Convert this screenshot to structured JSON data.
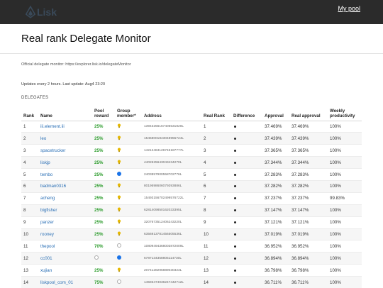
{
  "header": {
    "logo_text": "Lisk",
    "my_pool_label": "My pool"
  },
  "page": {
    "title": "Real rank Delegate Monitor",
    "official_text": "Official delegate monitor: https://explorer.lisk.io/delegateMonitor",
    "updates_text": "Updates every 2 hours. Last update: Aug4 23:20",
    "section_label": "DELEGATES"
  },
  "table": {
    "headers": {
      "rank": "Rank",
      "name": "Name",
      "reward": "Pool reward",
      "member": "Group member*",
      "address": "Address",
      "real_rank": "Real Rank",
      "difference": "Difference",
      "approval": "Approval",
      "real_approval": "Real approval",
      "productivity": "Weekly productivity"
    },
    "rows": [
      {
        "rank": "1",
        "name": "iii.element.iii",
        "reward": "25%",
        "member": "bulb",
        "address": "13943256167405531820L",
        "real_rank": "1",
        "approval": "37.469%",
        "real_approval": "37.469%",
        "productivity": "100%"
      },
      {
        "rank": "2",
        "name": "leo",
        "reward": "25%",
        "member": "bulb",
        "address": "15458001843048955724L",
        "real_rank": "2",
        "approval": "37.439%",
        "real_approval": "37.439%",
        "productivity": "100%"
      },
      {
        "rank": "3",
        "name": "spacetrucker",
        "reward": "25%",
        "member": "bulb",
        "address": "14212484126746187777L",
        "real_rank": "3",
        "approval": "37.365%",
        "real_approval": "37.365%",
        "productivity": "100%"
      },
      {
        "rank": "4",
        "name": "liskjp",
        "reward": "25%",
        "member": "bulb",
        "address": "4402625643043434270L",
        "real_rank": "4",
        "approval": "37.344%",
        "real_approval": "37.344%",
        "productivity": "100%"
      },
      {
        "rank": "5",
        "name": "tembo",
        "reward": "25%",
        "member": "blue",
        "address": "2403857900558702776L",
        "real_rank": "5",
        "approval": "37.283%",
        "real_approval": "37.283%",
        "productivity": "100%"
      },
      {
        "rank": "6",
        "name": "badman0316",
        "reward": "25%",
        "member": "bulb",
        "address": "8019598606079393886L",
        "real_rank": "6",
        "approval": "37.282%",
        "real_approval": "37.282%",
        "productivity": "100%"
      },
      {
        "rank": "7",
        "name": "acheng",
        "reward": "25%",
        "member": "bulb",
        "address": "15493156702499576722L",
        "real_rank": "7",
        "approval": "37.237%",
        "real_approval": "37.237%",
        "productivity": "99.83%"
      },
      {
        "rank": "8",
        "name": "bigfisher",
        "reward": "25%",
        "member": "bulb",
        "address": "6281409850162033395L",
        "real_rank": "8",
        "approval": "37.147%",
        "real_approval": "37.147%",
        "productivity": "100%"
      },
      {
        "rank": "9",
        "name": "panzer",
        "reward": "25%",
        "member": "bulb",
        "address": "3207673512406243220L",
        "real_rank": "9",
        "approval": "37.121%",
        "real_approval": "37.121%",
        "productivity": "100%"
      },
      {
        "rank": "10",
        "name": "rooney",
        "reward": "25%",
        "member": "bulb",
        "address": "6356913781456505536L",
        "real_rank": "10",
        "approval": "37.019%",
        "real_approval": "37.019%",
        "productivity": "100%"
      },
      {
        "rank": "11",
        "name": "thepool",
        "reward": "70%",
        "member": "empty",
        "address": "10809494368003872009L",
        "real_rank": "11",
        "approval": "36.952%",
        "real_approval": "36.952%",
        "productivity": "100%"
      },
      {
        "rank": "12",
        "name": "cc001",
        "reward": "",
        "member": "blue",
        "address": "6787134358805114730L",
        "real_rank": "12",
        "approval": "36.894%",
        "real_approval": "36.894%",
        "productivity": "100%"
      },
      {
        "rank": "13",
        "name": "xujian",
        "reward": "25%",
        "member": "bulb",
        "address": "2074128296889030323L",
        "real_rank": "13",
        "approval": "36.798%",
        "real_approval": "36.798%",
        "productivity": "100%"
      },
      {
        "rank": "14",
        "name": "liskpool_com_01",
        "reward": "75%",
        "member": "empty",
        "address": "14593474036247442712L",
        "real_rank": "14",
        "approval": "36.711%",
        "real_approval": "36.711%",
        "productivity": "100%"
      }
    ]
  },
  "colors": {
    "topbar": "#2b2b2b",
    "link": "#2a6fb5",
    "reward": "#2c9c2c",
    "bulb": "#e6b800",
    "member_blue": "#1a73e8"
  }
}
